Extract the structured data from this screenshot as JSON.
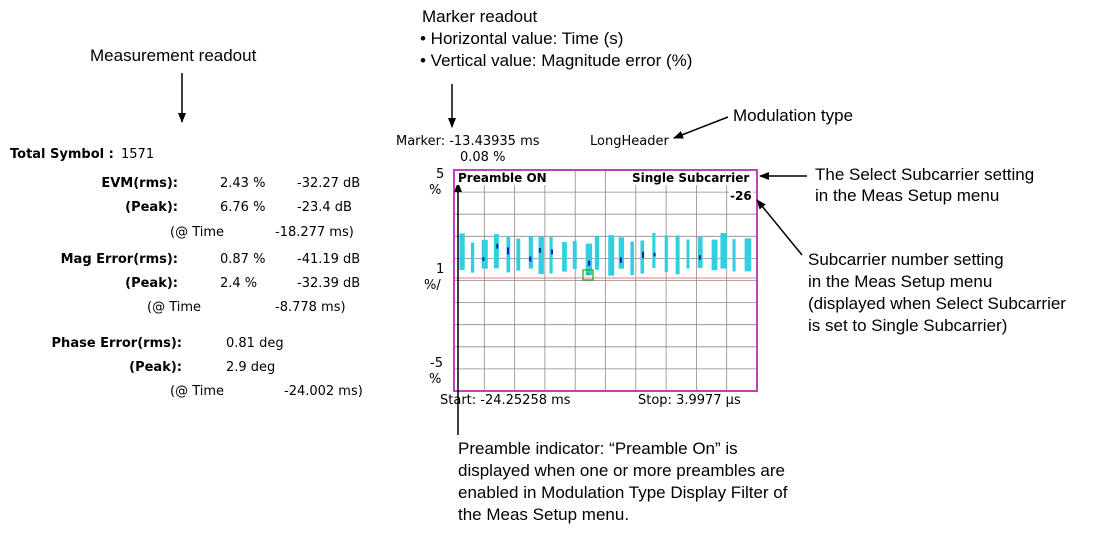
{
  "callouts": {
    "measurement_readout": "Measurement readout",
    "marker_readout_title": "Marker readout",
    "marker_readout_h": "• Horizontal value: Time (s)",
    "marker_readout_v": "• Vertical value: Magnitude error (%)",
    "modulation_type": "Modulation type",
    "select_subcarrier_1": "The Select Subcarrier setting",
    "select_subcarrier_2": "in the Meas Setup menu",
    "subcarrier_number_1": "Subcarrier number setting",
    "subcarrier_number_2": "in the Meas Setup menu",
    "subcarrier_number_3": "(displayed when Select Subcarrier",
    "subcarrier_number_4": "is set to Single Subcarrier)",
    "preamble_1": "Preamble indicator: “Preamble On” is",
    "preamble_2": "displayed when one or more preambles are",
    "preamble_3": "enabled in Modulation Type Display Filter of",
    "preamble_4": "the Meas Setup menu."
  },
  "readout": {
    "total_symbol_label": "Total Symbol :",
    "total_symbol_value": "1571",
    "evm_rms_label": "EVM(rms):",
    "evm_rms_pct": "2.43 %",
    "evm_rms_db": "-32.27 dB",
    "evm_peak_label": "(Peak):",
    "evm_peak_pct": "6.76 %",
    "evm_peak_db": "-23.4  dB",
    "evm_time_label": "(@ Time",
    "evm_time_value": "-18.277 ms)",
    "mag_rms_label": "Mag Error(rms):",
    "mag_rms_pct": "0.87 %",
    "mag_rms_db": "-41.19 dB",
    "mag_peak_label": "(Peak):",
    "mag_peak_pct": "2.4   %",
    "mag_peak_db": "-32.39 dB",
    "mag_time_label": "(@ Time",
    "mag_time_value": "-8.778 ms)",
    "phase_rms_label": "Phase Error(rms):",
    "phase_rms_value": "0.81 deg",
    "phase_peak_label": "(Peak):",
    "phase_peak_value": "2.9  deg",
    "phase_time_label": "(@ Time",
    "phase_time_value": "-24.002 ms)"
  },
  "graph": {
    "marker_text": "Marker: -13.43935 ms",
    "modulation_value": "LongHeader",
    "marker_value": "0.08 %",
    "y_top": "5",
    "y_top_unit": "%",
    "y_mid": "1",
    "y_mid_unit": "%/",
    "y_bottom": "-5",
    "y_bottom_unit": "%",
    "preamble_label": "Preamble ON",
    "subcarrier_mode": "Single Subcarrier",
    "subcarrier_number": "-26",
    "start_label": "Start: -24.25258 ms",
    "stop_label": "Stop: 3.9977 µs",
    "colors": {
      "frame": "#c040c0",
      "grid": "#8a8a8a",
      "trace": "#30d0e0",
      "trace_dark": "#1818b0",
      "reference": "#e08080",
      "marker": "#20a020"
    }
  }
}
